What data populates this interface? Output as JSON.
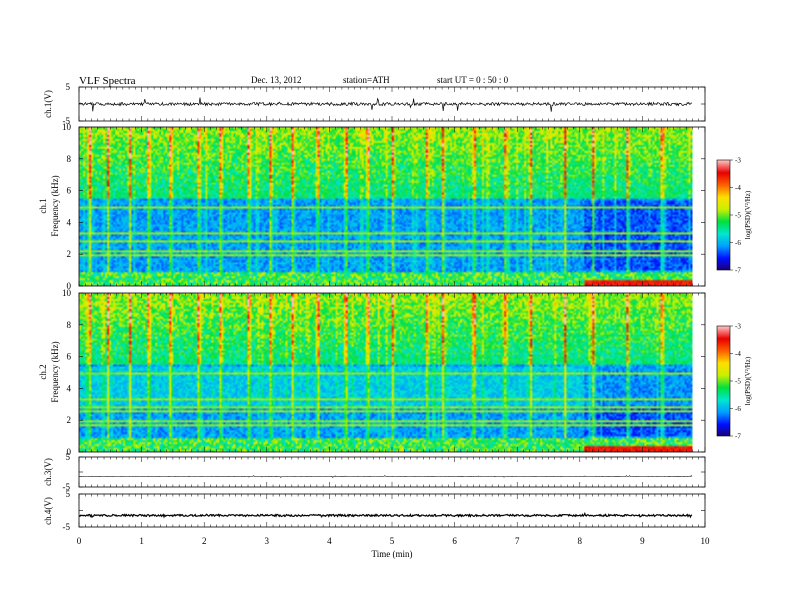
{
  "header": {
    "title": "VLF  Spectra",
    "date": "Dec. 13, 2012",
    "station": "station=ATH",
    "start": "start  UT  =    0  : 50 : 0"
  },
  "panels": {
    "ch1_wave": {
      "ylabel": "ch.1(V)",
      "ticks": [
        "5",
        "-5"
      ]
    },
    "ch1_spec": {
      "ylabel1": "ch.1",
      "ylabel2": "Frequency  (kHz)",
      "ticks": [
        "10",
        "8",
        "6",
        "4",
        "2",
        "0"
      ]
    },
    "ch2_spec": {
      "ylabel1": "ch.2",
      "ylabel2": "Frequency  (kHz)",
      "ticks": [
        "10",
        "8",
        "6",
        "4",
        "2",
        "0"
      ]
    },
    "ch3_wave": {
      "ylabel": "ch.3(V)",
      "ticks": [
        "5",
        "-5"
      ]
    },
    "ch4_wave": {
      "ylabel": "ch.4(V)",
      "ticks": [
        "5",
        "-5"
      ]
    }
  },
  "colorbars": [
    {
      "label": "log(PSD)(V²/Hz)",
      "ticks": [
        "-3",
        "-4",
        "-5",
        "-6",
        "-7"
      ]
    },
    {
      "label": "log(PSD)(V²/Hz)",
      "ticks": [
        "-3",
        "-4",
        "-5",
        "-6",
        "-7"
      ]
    }
  ],
  "xaxis": {
    "label": "Time  (min)",
    "ticks": [
      "0",
      "1",
      "2",
      "3",
      "4",
      "5",
      "6",
      "7",
      "8",
      "9",
      "10"
    ]
  },
  "colors": {
    "colormap": [
      "#1c0070",
      "#0010ff",
      "#00a0ff",
      "#00e8d0",
      "#00e040",
      "#c8f000",
      "#ffe000",
      "#ff6000",
      "#e80000",
      "#ffc0c0"
    ]
  },
  "chart_data": {
    "type": "heatmap",
    "title": "VLF  Spectra",
    "xlabel": "Time  (min)",
    "xlim": [
      0,
      10
    ],
    "data_end_min": 9.8,
    "panels": [
      {
        "name": "ch.1(V)",
        "kind": "waveform",
        "ylim": [
          -5,
          5
        ],
        "baseline_v": 0.0
      },
      {
        "name": "ch.1",
        "kind": "spectrogram",
        "ylabel": "Frequency  (kHz)",
        "ylim_khz": [
          0,
          10
        ],
        "zlim_log_psd": [
          -7,
          -3
        ],
        "strong_bands_khz": [
          0.3,
          0.5,
          0.7,
          0.9,
          2.0,
          2.3,
          2.9,
          3.4,
          5.0
        ],
        "impulsive_events_min": [
          0.15,
          0.45,
          0.8,
          1.1,
          1.45,
          1.9,
          2.25,
          2.7,
          3.05,
          3.4,
          3.8,
          4.25,
          4.6,
          5.0,
          5.55,
          5.8,
          6.3,
          6.8,
          7.2,
          7.75,
          8.2,
          8.75,
          9.3
        ]
      },
      {
        "name": "ch.2",
        "kind": "spectrogram",
        "ylabel": "Frequency  (kHz)",
        "ylim_khz": [
          0,
          10
        ],
        "zlim_log_psd": [
          -7,
          -3
        ],
        "strong_bands_khz": [
          0.3,
          0.5,
          0.7,
          0.9,
          1.7,
          2.0,
          2.6,
          2.9,
          3.4,
          5.0
        ],
        "impulsive_events_min": [
          0.15,
          0.45,
          0.8,
          1.1,
          1.45,
          1.9,
          2.25,
          2.7,
          3.05,
          3.4,
          3.8,
          4.25,
          4.6,
          5.0,
          5.55,
          5.8,
          6.3,
          6.8,
          7.2,
          7.75,
          8.2,
          8.75,
          9.3
        ]
      },
      {
        "name": "ch.3(V)",
        "kind": "waveform",
        "ylim": [
          -5,
          5
        ],
        "baseline_v": -1.5
      },
      {
        "name": "ch.4(V)",
        "kind": "waveform",
        "ylim": [
          -5,
          5
        ],
        "baseline_v": -1.5
      }
    ]
  }
}
